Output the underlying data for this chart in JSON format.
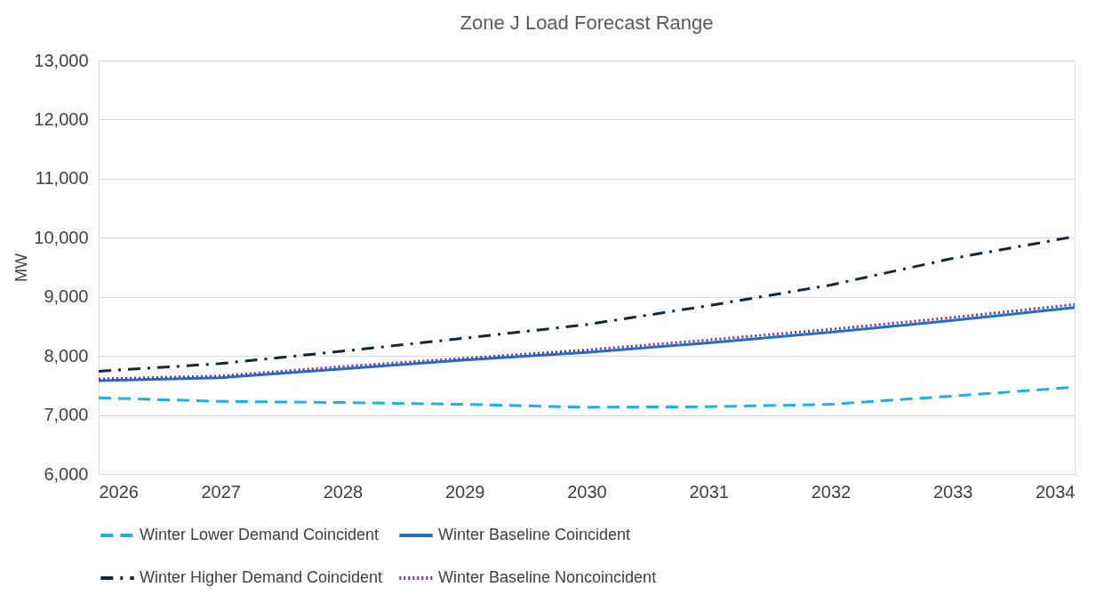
{
  "chart_data": {
    "type": "line",
    "title": "Zone J Load Forecast Range",
    "ylabel": "MW",
    "x": [
      2026,
      2027,
      2028,
      2029,
      2030,
      2031,
      2032,
      2033,
      2034
    ],
    "xlim": [
      2026,
      2034
    ],
    "xticks": [
      2026,
      2027,
      2028,
      2029,
      2030,
      2031,
      2032,
      2033,
      2034
    ],
    "ylim": [
      6000,
      13000
    ],
    "yticks": [
      {
        "value": 6000,
        "label": "6,000"
      },
      {
        "value": 7000,
        "label": "7,000"
      },
      {
        "value": 8000,
        "label": "8,000"
      },
      {
        "value": 9000,
        "label": "9,000"
      },
      {
        "value": 10000,
        "label": "10,000"
      },
      {
        "value": 11000,
        "label": "11,000"
      },
      {
        "value": 12000,
        "label": "12,000"
      },
      {
        "value": 13000,
        "label": "13,000"
      }
    ],
    "grid": "y",
    "legend": "bottom",
    "marker": "none",
    "series": [
      {
        "name": "Winter Lower Demand Coincident",
        "color": "#1ab0ec",
        "line_style": "dashed",
        "values": [
          7290,
          7230,
          7210,
          7180,
          7130,
          7140,
          7180,
          7320,
          7470
        ]
      },
      {
        "name": "Winter Baseline Coincident",
        "color": "#1f6fc5",
        "line_style": "solid",
        "values": [
          7580,
          7630,
          7780,
          7930,
          8060,
          8220,
          8400,
          8600,
          8820
        ]
      },
      {
        "name": "Winter Higher Demand Coincident",
        "color": "#0e2841",
        "line_style": "dashdot",
        "values": [
          7740,
          7870,
          8080,
          8300,
          8530,
          8850,
          9200,
          9650,
          10020
        ]
      },
      {
        "name": "Winter Baseline Noncoincident",
        "color": "#7030a0",
        "line_style": "dotted",
        "values": [
          7610,
          7660,
          7820,
          7960,
          8100,
          8270,
          8450,
          8650,
          8870
        ]
      }
    ]
  }
}
